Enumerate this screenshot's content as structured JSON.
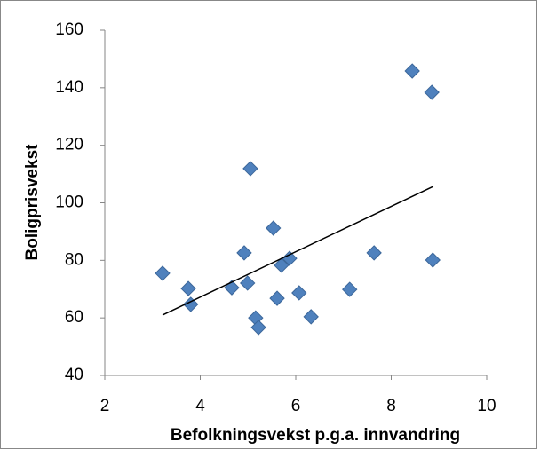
{
  "chart_data": {
    "type": "scatter",
    "x_label": "Befolkningsvekst p.g.a. innvandring",
    "y_label": "Boligprisvekst",
    "series": [
      {
        "color": "#4f81bd",
        "x": [
          3.21,
          3.75,
          3.8,
          4.66,
          4.92,
          4.99,
          5.05,
          5.16,
          5.22,
          5.53,
          5.61,
          5.7,
          5.87,
          6.07,
          6.32,
          7.13,
          7.64,
          8.44,
          8.85,
          8.87
        ],
        "values": [
          75.5,
          70.2,
          64.7,
          70.5,
          82.6,
          72.1,
          111.9,
          60.0,
          56.7,
          91.2,
          66.8,
          78.3,
          80.7,
          68.7,
          60.4,
          69.9,
          82.6,
          145.8,
          138.4,
          80.1
        ]
      }
    ],
    "trendline": {
      "color": "#000000",
      "x": [
        3.21,
        8.88
      ],
      "values": [
        61.0,
        105.7
      ]
    },
    "xlim": [
      2,
      10
    ],
    "xticks": [
      2,
      4,
      6,
      8,
      10
    ],
    "ylim": [
      40,
      160
    ],
    "yticks": [
      40,
      60,
      80,
      100,
      120,
      140,
      160
    ],
    "grid": false
  }
}
